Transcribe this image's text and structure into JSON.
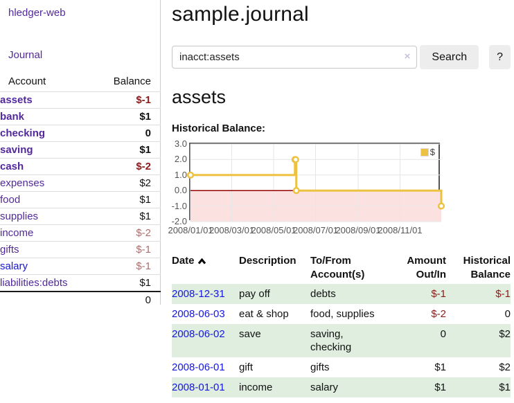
{
  "app": {
    "title": "hledger-web"
  },
  "sidebar": {
    "journal_link": "Journal",
    "account_header": "Account",
    "balance_header": "Balance",
    "accounts": [
      {
        "name": "assets",
        "balance": "$-1"
      },
      {
        "name": "bank",
        "balance": "$1"
      },
      {
        "name": "checking",
        "balance": "0"
      },
      {
        "name": "saving",
        "balance": "$1"
      },
      {
        "name": "cash",
        "balance": "$-2"
      },
      {
        "name": "expenses",
        "balance": "$2"
      },
      {
        "name": "food",
        "balance": "$1"
      },
      {
        "name": "supplies",
        "balance": "$1"
      },
      {
        "name": "income",
        "balance": "$-2"
      },
      {
        "name": "gifts",
        "balance": "$-1"
      },
      {
        "name": "salary",
        "balance": "$-1"
      },
      {
        "name": "liabilities:debts",
        "balance": "$1"
      }
    ],
    "total": "0"
  },
  "header": {
    "title": "sample.journal"
  },
  "search": {
    "query": "inacct:assets",
    "clear_icon": "×",
    "search_label": "Search",
    "help_label": "?"
  },
  "main": {
    "account_title": "assets",
    "chart_label": "Historical Balance:"
  },
  "chart_data": {
    "type": "line",
    "style": "step",
    "title": "Historical Balance",
    "series": [
      {
        "name": "$",
        "color": "#edc240",
        "points": [
          [
            "2008-01-01",
            1
          ],
          [
            "2008-06-01",
            2
          ],
          [
            "2008-06-02",
            2
          ],
          [
            "2008-06-03",
            0
          ],
          [
            "2008-12-31",
            -1
          ]
        ]
      }
    ],
    "x_range": [
      "2008-01-01",
      "2008-12-31"
    ],
    "ylim": [
      -2,
      3
    ],
    "y_ticks": [
      {
        "v": 3,
        "label": "3.0"
      },
      {
        "v": 2,
        "label": "2.0"
      },
      {
        "v": 1,
        "label": "1.0"
      },
      {
        "v": 0,
        "label": "0.0"
      },
      {
        "v": -1,
        "label": "-1.0"
      },
      {
        "v": -2,
        "label": "-2.0"
      }
    ],
    "x_ticks": [
      {
        "date": "2008-01-01",
        "label": "2008/01/01"
      },
      {
        "date": "2008-03-01",
        "label": "2008/03/01"
      },
      {
        "date": "2008-05-01",
        "label": "2008/05/01"
      },
      {
        "date": "2008-07-01",
        "label": "2008/07/01"
      },
      {
        "date": "2008-09-01",
        "label": "2008/09/01"
      },
      {
        "date": "2008-11-01",
        "label": "2008/11/01"
      }
    ],
    "legend": {
      "label": "$",
      "position": "top-right"
    },
    "grid_color": "#e6e6e6",
    "negative_region_color": "#fce1e1",
    "zero_line_color": "#940000"
  },
  "register": {
    "headers": {
      "date": "Date",
      "description": "Description",
      "accounts": "To/From Account(s)",
      "amount": "Amount Out/In",
      "balance": "Historical Balance"
    },
    "rows": [
      {
        "date": "2008-12-31",
        "description": "pay off",
        "accounts": "debts",
        "amount": "$-1",
        "balance": "$-1"
      },
      {
        "date": "2008-06-03",
        "description": "eat & shop",
        "accounts": "food, supplies",
        "amount": "$-2",
        "balance": "0"
      },
      {
        "date": "2008-06-02",
        "description": "save",
        "accounts": "saving, checking",
        "amount": "0",
        "balance": "$2"
      },
      {
        "date": "2008-06-01",
        "description": "gift",
        "accounts": "gifts",
        "amount": "$1",
        "balance": "$2"
      },
      {
        "date": "2008-01-01",
        "description": "income",
        "accounts": "salary",
        "amount": "$1",
        "balance": "$1"
      }
    ]
  }
}
